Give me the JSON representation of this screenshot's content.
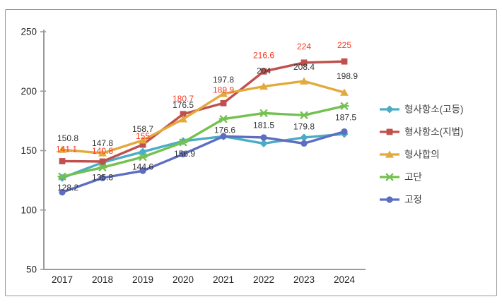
{
  "chart_data": {
    "type": "line",
    "title": "",
    "xlabel": "",
    "ylabel": "",
    "x": [
      "2017",
      "2018",
      "2019",
      "2020",
      "2021",
      "2022",
      "2023",
      "2024"
    ],
    "ylim": [
      50,
      250
    ],
    "yticks": [
      50,
      100,
      150,
      200,
      250
    ],
    "grid": false,
    "legend_position": "right",
    "axis_color": "#9B9B9B",
    "text_color": "#262626",
    "series": [
      {
        "name": "형사항소(고등)",
        "color": "#4BACC6",
        "marker": "diamond",
        "labeled": false,
        "label_color": "#333333",
        "values": [
          127,
          140,
          149,
          158,
          162,
          156,
          161,
          164
        ]
      },
      {
        "name": "형사항소(지법)",
        "color": "#C0504D",
        "marker": "square",
        "labeled": true,
        "label_color": "#F93822",
        "values": [
          141.1,
          140.8,
          155,
          180.7,
          189.9,
          216.6,
          224,
          225
        ]
      },
      {
        "name": "형사합의",
        "color": "#E3A93C",
        "marker": "triangle",
        "labeled": true,
        "label_color": "#333333",
        "values": [
          150.8,
          147.8,
          158.7,
          176.5,
          197.8,
          204,
          208.4,
          198.9
        ]
      },
      {
        "name": "고단",
        "color": "#74C050",
        "marker": "star",
        "labeled": true,
        "label_color": "#333333",
        "values": [
          128.2,
          135.8,
          144.6,
          156.9,
          176.6,
          181.5,
          179.8,
          187.5
        ]
      },
      {
        "name": "고정",
        "color": "#5D6EC1",
        "marker": "circle",
        "labeled": false,
        "label_color": "#333333",
        "values": [
          115,
          127,
          133,
          147,
          162,
          161,
          156,
          166
        ]
      }
    ]
  }
}
